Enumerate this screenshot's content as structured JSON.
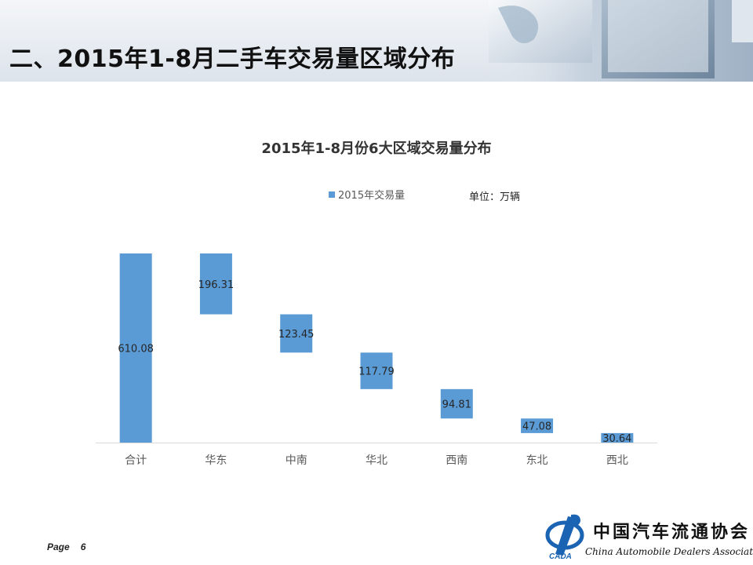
{
  "header": {
    "title": "二、2015年1-8月二手车交易量区域分布"
  },
  "chart_data": {
    "type": "bar",
    "title": "2015年1-8月份6大区域交易量分布",
    "unit_note": "单位：万辆",
    "legend": [
      "2015年交易量"
    ],
    "categories": [
      "合计",
      "华东",
      "中南",
      "华北",
      "西南",
      "东北",
      "西北"
    ],
    "values": [
      610.08,
      196.31,
      123.45,
      117.79,
      94.81,
      47.08,
      30.64
    ],
    "value_labels": [
      "610.08",
      "196.31",
      "123.45",
      "117.79",
      "94.81",
      "47.08",
      "30.64"
    ],
    "waterfall": true,
    "bar_color": "#5b9bd5",
    "grid": false,
    "legend_position": "top"
  },
  "footer": {
    "page_label": "Page",
    "page_number": "6"
  },
  "logo": {
    "cn_name": "中国汽车流通协会",
    "en_name": "China Automobile Dealers Association",
    "abbr": "CADA"
  }
}
